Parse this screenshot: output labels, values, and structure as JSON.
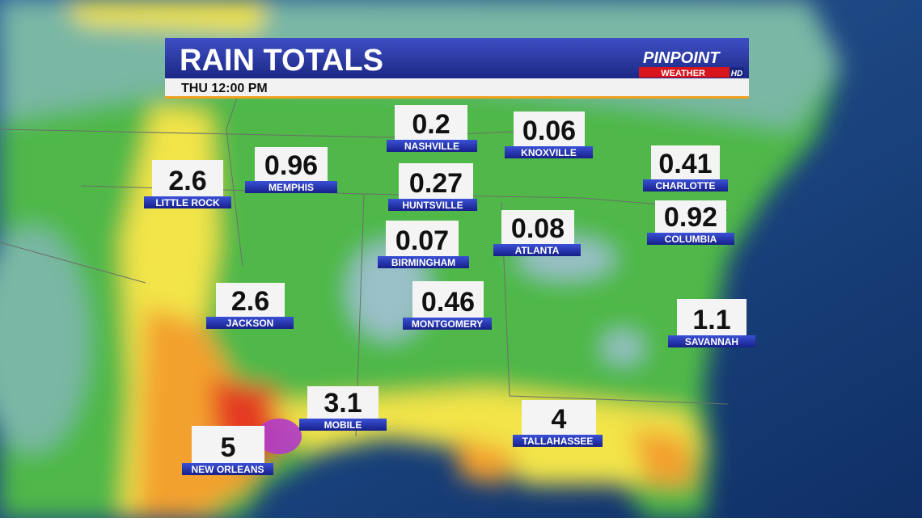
{
  "header": {
    "title": "RAIN TOTALS",
    "time": "THU 12:00 PM",
    "logo_top": "PINPOINT",
    "logo_bottom": "WEATHER",
    "logo_badge": "HD"
  },
  "cities": [
    {
      "value": "0.2",
      "name": "NASHVILLE"
    },
    {
      "value": "0.06",
      "name": "KNOXVILLE"
    },
    {
      "value": "0.96",
      "name": "MEMPHIS"
    },
    {
      "value": "2.6",
      "name": "LITTLE ROCK"
    },
    {
      "value": "0.27",
      "name": "HUNTSVILLE"
    },
    {
      "value": "0.41",
      "name": "CHARLOTTE"
    },
    {
      "value": "0.92",
      "name": "COLUMBIA"
    },
    {
      "value": "0.07",
      "name": "BIRMINGHAM"
    },
    {
      "value": "0.08",
      "name": "ATLANTA"
    },
    {
      "value": "2.6",
      "name": "JACKSON"
    },
    {
      "value": "0.46",
      "name": "MONTGOMERY"
    },
    {
      "value": "1.1",
      "name": "SAVANNAH"
    },
    {
      "value": "3.1",
      "name": "MOBILE"
    },
    {
      "value": "4",
      "name": "TALLAHASSEE"
    },
    {
      "value": "5",
      "name": "NEW ORLEANS"
    }
  ]
}
